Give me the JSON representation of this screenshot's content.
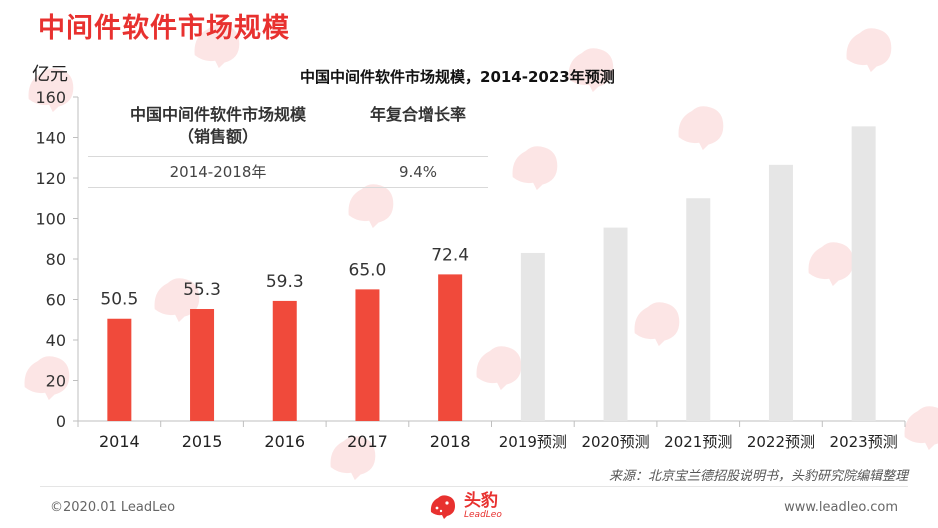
{
  "page_title": "中间件软件市场规模",
  "chart_data": {
    "type": "bar",
    "title": "中国中间件软件市场规模，2014-2023年预测",
    "ylabel": "亿元",
    "xlabel": "",
    "ylim": [
      0,
      160
    ],
    "yticks": [
      0,
      20,
      40,
      60,
      80,
      100,
      120,
      140,
      160
    ],
    "categories": [
      "2014",
      "2015",
      "2016",
      "2017",
      "2018",
      "2019预测",
      "2020预测",
      "2021预测",
      "2022预测",
      "2023预测"
    ],
    "values": [
      50.5,
      55.3,
      59.3,
      65.0,
      72.4,
      83,
      95.5,
      110,
      126.5,
      145.5
    ],
    "data_labels": [
      "50.5",
      "55.3",
      "59.3",
      "65.0",
      "72.4",
      "",
      "",
      "",
      "",
      ""
    ],
    "colors": {
      "actual": "#f04a3b",
      "forecast": "#e6e6e6"
    },
    "grid": false,
    "legend": "none"
  },
  "cagr_table": {
    "header_col1_line1": "中国中间件软件市场规模",
    "header_col1_line2": "（销售额）",
    "header_col2": "年复合增长率",
    "row_period": "2014-2018年",
    "row_rate": "9.4%"
  },
  "source_note": "来源：北京宝兰德招股说明书，头豹研究院编辑整理",
  "footer": {
    "copyright": "©2020.01 LeadLeo",
    "logo_cn": "头豹",
    "logo_en": "LeadLeo",
    "website": "www.leadleo.com"
  },
  "watermark": {
    "cn": "头豹",
    "en": "LeadLeo"
  }
}
